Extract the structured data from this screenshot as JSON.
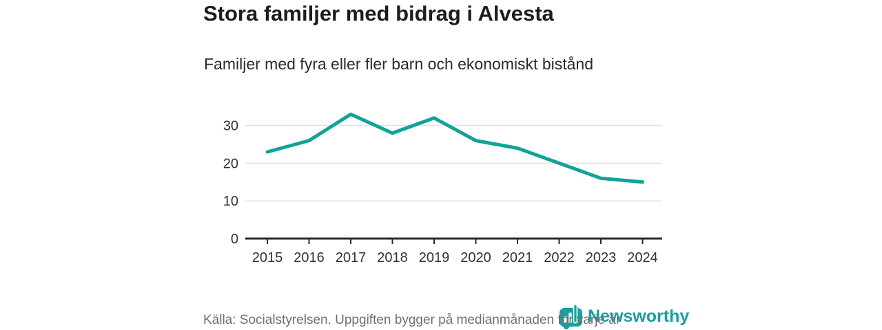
{
  "title": "Stora familjer med bidrag i Alvesta",
  "subtitle": "Familjer med fyra eller fler barn och ekonomiskt bistånd",
  "footer": {
    "source_text": "Källa: Socialstyrelsen. Uppgiften bygger på medianmånaden för varje år",
    "brand_name": "Newsworthy"
  },
  "colors": {
    "line": "#10a396",
    "brand_teal": "#1a9fa0",
    "grid": "#e3e3e3",
    "axis": "#2b2b2b",
    "tick_text": "#333333",
    "title_text": "#1c1c1c",
    "muted_text": "#6e7073",
    "background": "#ffffff"
  },
  "chart_data": {
    "type": "line",
    "title": "Stora familjer med bidrag i Alvesta",
    "subtitle": "Familjer med fyra eller fler barn och ekonomiskt bistånd",
    "categories": [
      2015,
      2016,
      2017,
      2018,
      2019,
      2020,
      2021,
      2022,
      2023,
      2024
    ],
    "series": [
      {
        "name": "Familjer med fyra eller fler barn och ekonomiskt bistånd",
        "values": [
          23,
          26,
          33,
          28,
          32,
          26,
          24,
          20,
          16,
          15
        ]
      }
    ],
    "xlabel": "",
    "ylabel": "",
    "yticks": [
      0,
      10,
      20,
      30
    ],
    "ylim": [
      0,
      35
    ],
    "grid": "horizontal",
    "legend": "none"
  }
}
